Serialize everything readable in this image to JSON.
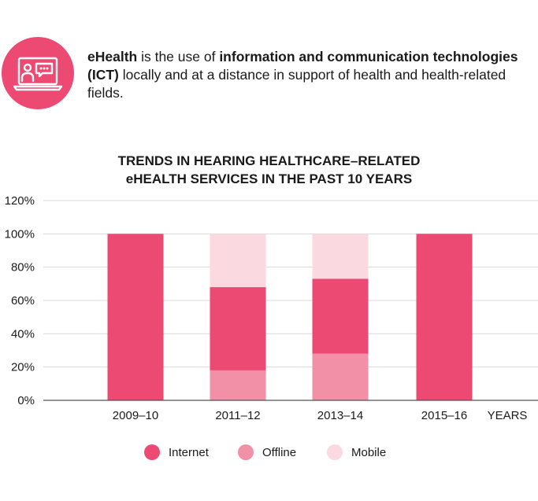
{
  "intro": {
    "term": "eHealth",
    "text_1": " is the use of ",
    "bold_phrase": "information and communication technologies (ICT)",
    "text_2": " locally and at a distance in support of health and health-related fields.",
    "icon": "computer-user-chat-icon"
  },
  "colors": {
    "accent": "#ec4a72",
    "internet": "#ec4a72",
    "offline": "#f290a7",
    "mobile": "#fad9e1",
    "axis": "#555555",
    "grid": "#d9d9d9"
  },
  "chart_data": {
    "type": "bar",
    "stacked": true,
    "title_line1": "TRENDS IN HEARING HEALTHCARE–RELATED",
    "title_line2": "eHEALTH SERVICES IN THE PAST 10 YEARS",
    "xlabel": "YEARS",
    "ylabel": "",
    "categories": [
      "2009–10",
      "2011–12",
      "2013–14",
      "2015–16"
    ],
    "ylim": [
      0,
      120
    ],
    "yticks": [
      "0%",
      "20%",
      "40%",
      "60%",
      "80%",
      "100%",
      "120%"
    ],
    "grid": true,
    "legend_position": "bottom",
    "series": [
      {
        "name": "Offline",
        "values": [
          0,
          18,
          28,
          0
        ]
      },
      {
        "name": "Internet",
        "values": [
          100,
          50,
          45,
          100
        ]
      },
      {
        "name": "Mobile",
        "values": [
          0,
          32,
          27,
          0
        ]
      }
    ]
  },
  "legend": [
    {
      "label": "Internet",
      "color": "#ec4a72"
    },
    {
      "label": "Offline",
      "color": "#f290a7"
    },
    {
      "label": "Mobile",
      "color": "#fad9e1"
    }
  ]
}
